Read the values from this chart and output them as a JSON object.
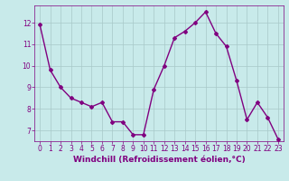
{
  "x": [
    0,
    1,
    2,
    3,
    4,
    5,
    6,
    7,
    8,
    9,
    10,
    11,
    12,
    13,
    14,
    15,
    16,
    17,
    18,
    19,
    20,
    21,
    22,
    23
  ],
  "y": [
    11.9,
    9.8,
    9.0,
    8.5,
    8.3,
    8.1,
    8.3,
    7.4,
    7.4,
    6.8,
    6.8,
    8.9,
    10.0,
    11.3,
    11.6,
    12.0,
    12.5,
    11.5,
    10.9,
    9.3,
    7.5,
    8.3,
    7.6,
    6.6
  ],
  "line_color": "#800080",
  "marker": "D",
  "marker_size": 2.0,
  "bg_color": "#c8eaea",
  "grid_color": "#a8c8c8",
  "xlabel": "Windchill (Refroidissement éolien,°C)",
  "xlabel_color": "#800080",
  "tick_color": "#800080",
  "ylim": [
    6.5,
    12.8
  ],
  "xlim": [
    -0.5,
    23.5
  ],
  "yticks": [
    7,
    8,
    9,
    10,
    11,
    12
  ],
  "xticks": [
    0,
    1,
    2,
    3,
    4,
    5,
    6,
    7,
    8,
    9,
    10,
    11,
    12,
    13,
    14,
    15,
    16,
    17,
    18,
    19,
    20,
    21,
    22,
    23
  ],
  "xtick_labels": [
    "0",
    "1",
    "2",
    "3",
    "4",
    "5",
    "6",
    "7",
    "8",
    "9",
    "10",
    "11",
    "12",
    "13",
    "14",
    "15",
    "16",
    "17",
    "18",
    "19",
    "20",
    "21",
    "22",
    "23"
  ],
  "tick_fontsize": 5.5,
  "xlabel_fontsize": 6.5,
  "line_width": 1.0
}
